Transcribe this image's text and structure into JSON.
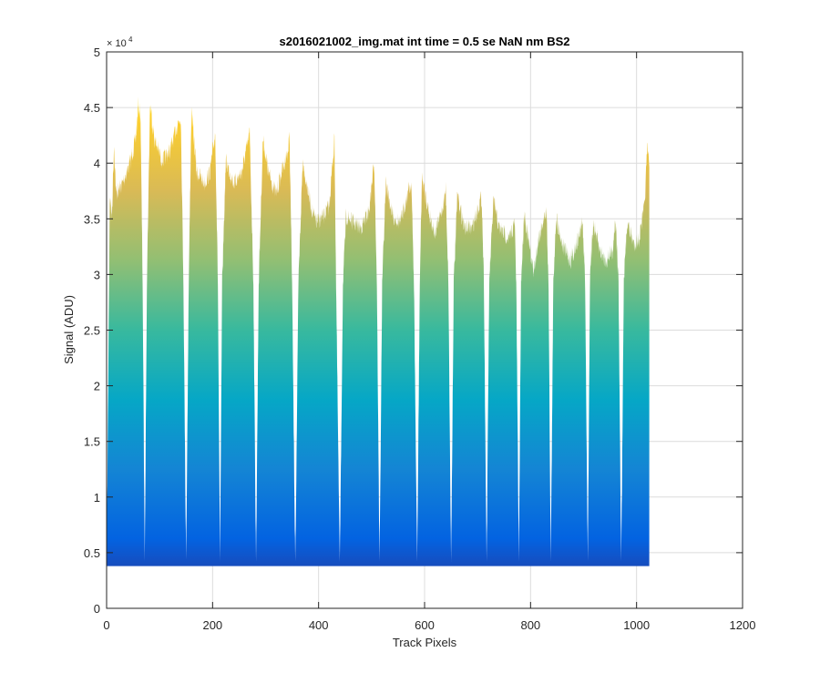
{
  "chart_data": {
    "type": "area",
    "title": "s2016021002_img.mat int time = 0.5 se  NaN nm BS2",
    "xlabel": "Track Pixels",
    "ylabel": "Signal (ADU)",
    "xlim": [
      0,
      1200
    ],
    "ylim": [
      0,
      50000
    ],
    "xticks": [
      "0",
      "200",
      "400",
      "600",
      "800",
      "1000",
      "1200"
    ],
    "yticks": [
      "0",
      "0.5",
      "1",
      "1.5",
      "2",
      "2.5",
      "3",
      "3.5",
      "4",
      "4.5",
      "5"
    ],
    "y_exponent_base": "× 10",
    "y_exponent_power": "4",
    "grid": true,
    "colormap": "parula",
    "colormap_stops": [
      "#352a87",
      "#0363e1",
      "#1485d4",
      "#06a7c6",
      "#38b99e",
      "#92bf73",
      "#d9ba56",
      "#fcce2e",
      "#f9fb0e"
    ],
    "data_end_x": 1024,
    "baseline": 3800,
    "envelope": [
      [
        0,
        5000
      ],
      [
        2,
        15000
      ],
      [
        6,
        38000
      ],
      [
        10,
        36000
      ],
      [
        14,
        42500
      ],
      [
        18,
        38000
      ],
      [
        30,
        39000
      ],
      [
        45,
        41000
      ],
      [
        55,
        43000
      ],
      [
        60,
        46000
      ],
      [
        64,
        45000
      ],
      [
        68,
        30000
      ],
      [
        72,
        4200
      ],
      [
        76,
        30000
      ],
      [
        82,
        46200
      ],
      [
        90,
        43000
      ],
      [
        105,
        41000
      ],
      [
        120,
        42000
      ],
      [
        135,
        44500
      ],
      [
        140,
        45000
      ],
      [
        145,
        30000
      ],
      [
        150,
        4400
      ],
      [
        155,
        30000
      ],
      [
        160,
        45500
      ],
      [
        170,
        40000
      ],
      [
        185,
        39000
      ],
      [
        195,
        40000
      ],
      [
        205,
        43500
      ],
      [
        210,
        30000
      ],
      [
        214,
        4200
      ],
      [
        218,
        30000
      ],
      [
        225,
        41000
      ],
      [
        240,
        39000
      ],
      [
        255,
        40000
      ],
      [
        270,
        43500
      ],
      [
        277,
        30000
      ],
      [
        282,
        4200
      ],
      [
        287,
        30000
      ],
      [
        295,
        43000
      ],
      [
        305,
        40000
      ],
      [
        320,
        38000
      ],
      [
        330,
        40000
      ],
      [
        343,
        42000
      ],
      [
        345,
        43500
      ],
      [
        350,
        30000
      ],
      [
        356,
        4200
      ],
      [
        362,
        30000
      ],
      [
        370,
        41000
      ],
      [
        385,
        37000
      ],
      [
        395,
        35500
      ],
      [
        410,
        36000
      ],
      [
        420,
        37000
      ],
      [
        430,
        43000
      ],
      [
        433,
        30000
      ],
      [
        440,
        4200
      ],
      [
        446,
        30000
      ],
      [
        452,
        36000
      ],
      [
        465,
        35500
      ],
      [
        480,
        35000
      ],
      [
        495,
        36500
      ],
      [
        505,
        41000
      ],
      [
        510,
        30000
      ],
      [
        515,
        4200
      ],
      [
        520,
        30000
      ],
      [
        527,
        39000
      ],
      [
        540,
        36000
      ],
      [
        555,
        35500
      ],
      [
        570,
        38500
      ],
      [
        575,
        39000
      ],
      [
        580,
        30000
      ],
      [
        586,
        4200
      ],
      [
        591,
        30000
      ],
      [
        595,
        39500
      ],
      [
        610,
        36000
      ],
      [
        620,
        34500
      ],
      [
        635,
        37000
      ],
      [
        640,
        38500
      ],
      [
        645,
        30000
      ],
      [
        650,
        4200
      ],
      [
        655,
        30000
      ],
      [
        662,
        38000
      ],
      [
        675,
        35000
      ],
      [
        690,
        35000
      ],
      [
        705,
        37500
      ],
      [
        708,
        37500
      ],
      [
        712,
        30000
      ],
      [
        717,
        4200
      ],
      [
        722,
        30000
      ],
      [
        730,
        37500
      ],
      [
        740,
        35000
      ],
      [
        750,
        34500
      ],
      [
        760,
        34000
      ],
      [
        770,
        35500
      ],
      [
        773,
        30000
      ],
      [
        778,
        4200
      ],
      [
        782,
        30000
      ],
      [
        788,
        36500
      ],
      [
        795,
        34000
      ],
      [
        806,
        31000
      ],
      [
        815,
        34000
      ],
      [
        823,
        35500
      ],
      [
        830,
        36500
      ],
      [
        834,
        30000
      ],
      [
        838,
        4200
      ],
      [
        843,
        30000
      ],
      [
        848,
        36000
      ],
      [
        860,
        33500
      ],
      [
        875,
        32000
      ],
      [
        890,
        34000
      ],
      [
        898,
        35500
      ],
      [
        903,
        30000
      ],
      [
        908,
        4200
      ],
      [
        912,
        30000
      ],
      [
        918,
        35500
      ],
      [
        930,
        33000
      ],
      [
        942,
        32000
      ],
      [
        955,
        33000
      ],
      [
        960,
        36000
      ],
      [
        966,
        30000
      ],
      [
        971,
        4200
      ],
      [
        976,
        30000
      ],
      [
        982,
        35500
      ],
      [
        995,
        33500
      ],
      [
        1005,
        34000
      ],
      [
        1015,
        37000
      ],
      [
        1020,
        42000
      ],
      [
        1024,
        41000
      ]
    ]
  }
}
